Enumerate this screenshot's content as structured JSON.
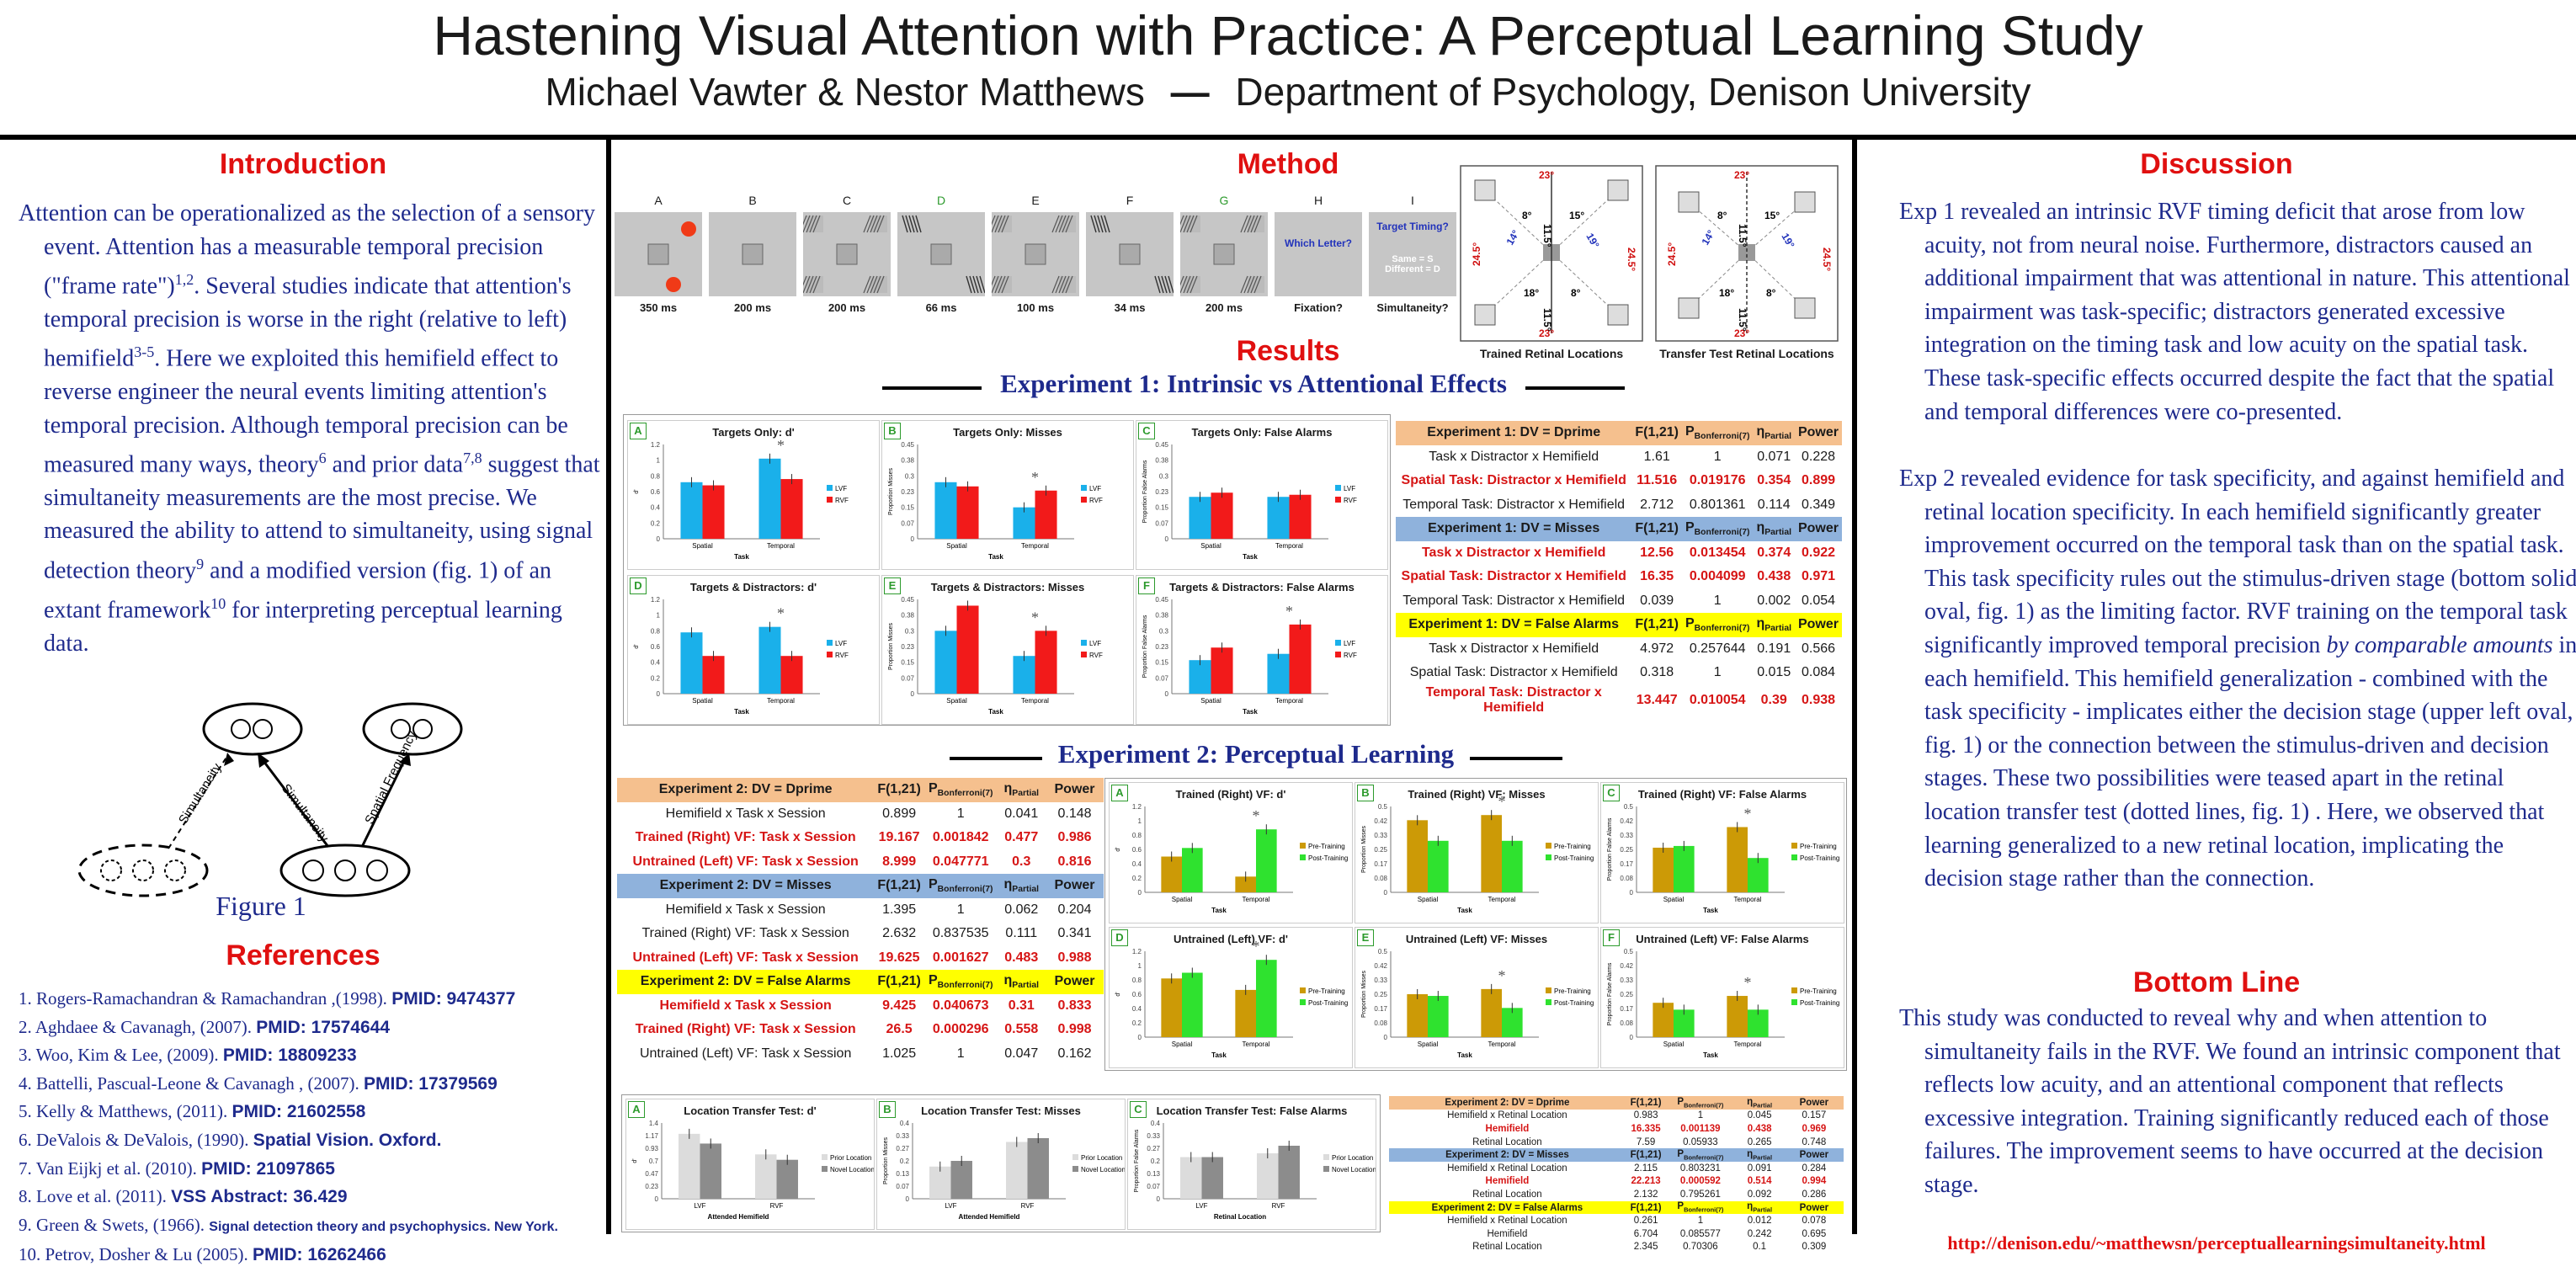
{
  "header": {
    "title": "Hastening Visual Attention with Practice: A Perceptual Learning Study",
    "authors": "Michael Vawter & Nestor Matthews",
    "dash": "—",
    "affiliation": "Department of Psychology, Denison University"
  },
  "introduction": {
    "title": "Introduction",
    "text_parts": [
      "Attention can be operationalized as the selection of a sensory event.  Attention has a measurable temporal precision (\"frame rate\")",
      "1,2",
      ". Several studies indicate that attention's temporal precision is worse in the right (relative to left) hemifield",
      "3-5",
      ".  Here we exploited this hemifield effect to reverse engineer the neural events limiting attention's temporal precision. Although temporal precision can be measured many ways, theory",
      "6",
      " and prior data",
      "7,8",
      " suggest that simultaneity measurements are the most precise. We measured the ability to attend to simultaneity, using signal detection theory",
      "9",
      " and a modified version (fig. 1) of  an extant framework",
      "10",
      " for interpreting perceptual learning data."
    ],
    "figure": {
      "caption": "Figure 1",
      "label_left": "Simultaneity",
      "label_mid": "Simultaneity",
      "label_right": "Spatial Frequency"
    }
  },
  "references": {
    "title": "References",
    "items": [
      {
        "text": "1. Rogers-Ramachandran & Ramachandran ,(1998). ",
        "bold": "PMID: 9474377"
      },
      {
        "text": "2. Aghdaee & Cavanagh, (2007). ",
        "bold": "PMID: 17574644"
      },
      {
        "text": "3. Woo, Kim & Lee, (2009). ",
        "bold": "PMID: 18809233"
      },
      {
        "text": "4. Battelli, Pascual-Leone & Cavanagh , (2007). ",
        "bold": "PMID: 17379569"
      },
      {
        "text": "5. Kelly & Matthews, (2011). ",
        "bold": "PMID: 21602558"
      },
      {
        "text": "6. DeValois & DeValois, (1990).  ",
        "bold": "Spatial Vision. Oxford."
      },
      {
        "text": "7. Van Eijkj et al. (2010). ",
        "bold": "PMID: 21097865"
      },
      {
        "text": "8. Love et al. (2011). ",
        "bold": "VSS Abstract: 36.429"
      },
      {
        "text": "9. Green & Swets, (1966). ",
        "bold": "Signal detection theory and psychophysics. New York."
      },
      {
        "text": "10. Petrov, Dosher & Lu (2005). ",
        "bold": "PMID: 16262466"
      }
    ]
  },
  "method": {
    "title": "Method",
    "frames": [
      {
        "label": "A",
        "time": "350 ms"
      },
      {
        "label": "B",
        "time": "200 ms"
      },
      {
        "label": "C",
        "time": "200 ms"
      },
      {
        "label": "D",
        "time": "66 ms"
      },
      {
        "label": "E",
        "time": "100 ms"
      },
      {
        "label": "F",
        "time": "34 ms"
      },
      {
        "label": "G",
        "time": "200 ms"
      },
      {
        "label": "H",
        "time": "Fixation?",
        "prompt": "Which Letter?"
      },
      {
        "label": "I",
        "time": "Simultaneity?",
        "prompt": "Target Timing?",
        "prompt2": "Same = S\nDifferent = D"
      }
    ],
    "diagrams": [
      {
        "caption": "Trained Retinal Locations"
      },
      {
        "caption": "Transfer Test Retinal Locations"
      }
    ],
    "angles": [
      "23°",
      "8°",
      "15°",
      "24.5°",
      "14°",
      "19°",
      "11.5°",
      "18°"
    ]
  },
  "results": {
    "title": "Results",
    "exp1_title": "Experiment 1: Intrinsic vs Attentional Effects",
    "exp2_title": "Experiment 2: Perceptual Learning",
    "legend": {
      "lvf": "LVF",
      "rvf": "RVF",
      "pre": "Pre-Training",
      "post": "Post-Training",
      "prior": "Prior Location",
      "novel": "Novel Location"
    },
    "axis": {
      "task": "Task",
      "spatial": "Spatial",
      "temporal": "Temporal",
      "lvf": "LVF",
      "rvf": "RVF",
      "attended": "Attended Hemifield",
      "retinal": "Retinal Location"
    }
  },
  "exp1_charts": [
    {
      "id": "A",
      "title": "Targets Only: d'",
      "ylabel": "d'",
      "ymax": 1.2,
      "star_at": 1,
      "lvf": [
        0.72,
        1.02
      ],
      "rvf": [
        0.68,
        0.76
      ]
    },
    {
      "id": "B",
      "title": "Targets Only: Misses",
      "ylabel": "Proportion Misses",
      "ymax": 0.45,
      "star_at": 1,
      "lvf": [
        0.27,
        0.15
      ],
      "rvf": [
        0.25,
        0.23
      ]
    },
    {
      "id": "C",
      "title": "Targets Only: False Alarms",
      "ylabel": "Proportion False Alarms",
      "ymax": 0.45,
      "star_at": null,
      "lvf": [
        0.2,
        0.2
      ],
      "rvf": [
        0.22,
        0.21
      ]
    },
    {
      "id": "D",
      "title": "Targets & Distractors: d'",
      "ylabel": "d'",
      "ymax": 1.2,
      "star_at": 1,
      "lvf": [
        0.78,
        0.85
      ],
      "rvf": [
        0.48,
        0.48
      ]
    },
    {
      "id": "E",
      "title": "Targets & Distractors: Misses",
      "ylabel": "Proportion Misses",
      "ymax": 0.45,
      "star_at": 1,
      "lvf": [
        0.3,
        0.18
      ],
      "rvf": [
        0.42,
        0.3
      ]
    },
    {
      "id": "F",
      "title": "Targets & Distractors: False Alarms",
      "ylabel": "Proportion False Alarms",
      "ymax": 0.45,
      "star_at": 1,
      "lvf": [
        0.16,
        0.19
      ],
      "rvf": [
        0.22,
        0.33
      ]
    }
  ],
  "exp2_charts": [
    {
      "id": "A",
      "title": "Trained (Right) VF: d'",
      "ylabel": "d'",
      "ymax": 1.2,
      "star_at": 1,
      "pre": [
        0.5,
        0.22
      ],
      "post": [
        0.62,
        0.88
      ]
    },
    {
      "id": "B",
      "title": "Trained (Right) VF: Misses",
      "ylabel": "Proportion Misses",
      "ymax": 0.5,
      "star_at": 1,
      "pre": [
        0.42,
        0.45
      ],
      "post": [
        0.3,
        0.3
      ]
    },
    {
      "id": "C",
      "title": "Trained (Right) VF: False Alarms",
      "ylabel": "Proportion False Alarms",
      "ymax": 0.5,
      "star_at": 1,
      "pre": [
        0.26,
        0.38
      ],
      "post": [
        0.27,
        0.2
      ]
    },
    {
      "id": "D",
      "title": "Untrained (Left) VF: d'",
      "ylabel": "d'",
      "ymax": 1.2,
      "star_at": 1,
      "pre": [
        0.82,
        0.66
      ],
      "post": [
        0.9,
        1.08
      ]
    },
    {
      "id": "E",
      "title": "Untrained (Left) VF: Misses",
      "ylabel": "Proportion Misses",
      "ymax": 0.5,
      "star_at": 1,
      "pre": [
        0.25,
        0.28
      ],
      "post": [
        0.24,
        0.17
      ]
    },
    {
      "id": "F",
      "title": "Untrained (Left) VF: False Alarms",
      "ylabel": "Proportion False Alarms",
      "ymax": 0.5,
      "star_at": 1,
      "pre": [
        0.2,
        0.24
      ],
      "post": [
        0.16,
        0.16
      ]
    }
  ],
  "transfer_charts": [
    {
      "id": "A",
      "title": "Location Transfer Test: d'",
      "ylabel": "d'",
      "xlabel": "Attended Hemifield",
      "ymax": 1.4,
      "cats": [
        "LVF",
        "RVF"
      ],
      "prior": [
        1.2,
        0.82
      ],
      "novel": [
        1.02,
        0.72
      ]
    },
    {
      "id": "B",
      "title": "Location Transfer Test: Misses",
      "ylabel": "Proportion Misses",
      "xlabel": "Attended Hemifield",
      "ymax": 0.4,
      "cats": [
        "LVF",
        "RVF"
      ],
      "prior": [
        0.17,
        0.3
      ],
      "novel": [
        0.2,
        0.32
      ]
    },
    {
      "id": "C",
      "title": "Location Transfer Test: False Alarms",
      "ylabel": "Proportion False Alarms",
      "xlabel": "Retinal Location",
      "ymax": 0.4,
      "cats": [
        "LVF",
        "RVF"
      ],
      "prior": [
        0.22,
        0.24
      ],
      "novel": [
        0.22,
        0.28
      ]
    }
  ],
  "exp1_stats": [
    {
      "header": "Experiment 1: DV = Dprime",
      "color": "orange",
      "rows": [
        {
          "label": "Task x Distractor x Hemifield",
          "f": "1.61",
          "p": "1",
          "eta": "0.071",
          "power": "0.228",
          "sig": false
        },
        {
          "label": "Spatial Task: Distractor x Hemifield",
          "f": "11.516",
          "p": "0.019176",
          "eta": "0.354",
          "power": "0.899",
          "sig": true
        },
        {
          "label": "Temporal Task: Distractor x Hemifield",
          "f": "2.712",
          "p": "0.801361",
          "eta": "0.114",
          "power": "0.349",
          "sig": false
        }
      ]
    },
    {
      "header": "Experiment 1: DV = Misses",
      "color": "blue",
      "rows": [
        {
          "label": "Task x Distractor x Hemifield",
          "f": "12.56",
          "p": "0.013454",
          "eta": "0.374",
          "power": "0.922",
          "sig": true
        },
        {
          "label": "Spatial Task: Distractor x Hemifield",
          "f": "16.35",
          "p": "0.004099",
          "eta": "0.438",
          "power": "0.971",
          "sig": true
        },
        {
          "label": "Temporal Task: Distractor x Hemifield",
          "f": "0.039",
          "p": "1",
          "eta": "0.002",
          "power": "0.054",
          "sig": false
        }
      ]
    },
    {
      "header": "Experiment 1: DV = False Alarms",
      "color": "yellow",
      "rows": [
        {
          "label": "Task x Distractor x Hemifield",
          "f": "4.972",
          "p": "0.257644",
          "eta": "0.191",
          "power": "0.566",
          "sig": false
        },
        {
          "label": "Spatial Task: Distractor x Hemifield",
          "f": "0.318",
          "p": "1",
          "eta": "0.015",
          "power": "0.084",
          "sig": false
        },
        {
          "label": "Temporal Task: Distractor x Hemifield",
          "f": "13.447",
          "p": "0.010054",
          "eta": "0.39",
          "power": "0.938",
          "sig": true
        }
      ]
    }
  ],
  "exp2_stats": [
    {
      "header": "Experiment 2: DV = Dprime",
      "color": "orange",
      "rows": [
        {
          "label": "Hemifield x Task x Session",
          "f": "0.899",
          "p": "1",
          "eta": "0.041",
          "power": "0.148",
          "sig": false
        },
        {
          "label": "Trained (Right) VF: Task x Session",
          "f": "19.167",
          "p": "0.001842",
          "eta": "0.477",
          "power": "0.986",
          "sig": true
        },
        {
          "label": "Untrained (Left) VF: Task x Session",
          "f": "8.999",
          "p": "0.047771",
          "eta": "0.3",
          "power": "0.816",
          "sig": true
        }
      ]
    },
    {
      "header": "Experiment 2: DV = Misses",
      "color": "blue",
      "rows": [
        {
          "label": "Hemifield x Task x Session",
          "f": "1.395",
          "p": "1",
          "eta": "0.062",
          "power": "0.204",
          "sig": false
        },
        {
          "label": "Trained (Right) VF: Task x Session",
          "f": "2.632",
          "p": "0.837535",
          "eta": "0.111",
          "power": "0.341",
          "sig": false
        },
        {
          "label": "Untrained (Left) VF: Task x Session",
          "f": "19.625",
          "p": "0.001627",
          "eta": "0.483",
          "power": "0.988",
          "sig": true
        }
      ]
    },
    {
      "header": "Experiment 2: DV = False Alarms",
      "color": "yellow",
      "rows": [
        {
          "label": "Hemifield x Task x Session",
          "f": "9.425",
          "p": "0.040673",
          "eta": "0.31",
          "power": "0.833",
          "sig": true
        },
        {
          "label": "Trained (Right) VF: Task x Session",
          "f": "26.5",
          "p": "0.000296",
          "eta": "0.558",
          "power": "0.998",
          "sig": true
        },
        {
          "label": "Untrained (Left) VF: Task x Session",
          "f": "1.025",
          "p": "1",
          "eta": "0.047",
          "power": "0.162",
          "sig": false
        }
      ]
    }
  ],
  "transfer_stats": [
    {
      "header": "Experiment 2: DV = Dprime",
      "color": "orange",
      "rows": [
        {
          "label": "Hemifield x Retinal Location",
          "f": "0.983",
          "p": "1",
          "eta": "0.045",
          "power": "0.157",
          "sig": false
        },
        {
          "label": "Hemifield",
          "f": "16.335",
          "p": "0.001139",
          "eta": "0.438",
          "power": "0.969",
          "sig": true
        },
        {
          "label": "Retinal Location",
          "f": "7.59",
          "p": "0.05933",
          "eta": "0.265",
          "power": "0.748",
          "sig": false
        }
      ]
    },
    {
      "header": "Experiment 2: DV = Misses",
      "color": "blue",
      "rows": [
        {
          "label": "Hemifield x Retinal Location",
          "f": "2.115",
          "p": "0.803231",
          "eta": "0.091",
          "power": "0.284",
          "sig": false
        },
        {
          "label": "Hemifield",
          "f": "22.213",
          "p": "0.000592",
          "eta": "0.514",
          "power": "0.994",
          "sig": true
        },
        {
          "label": "Retinal Location",
          "f": "2.132",
          "p": "0.795261",
          "eta": "0.092",
          "power": "0.286",
          "sig": false
        }
      ]
    },
    {
      "header": "Experiment 2: DV = False Alarms",
      "color": "yellow",
      "rows": [
        {
          "label": "Hemifield x Retinal Location",
          "f": "0.261",
          "p": "1",
          "eta": "0.012",
          "power": "0.078",
          "sig": false
        },
        {
          "label": "Hemifield",
          "f": "6.704",
          "p": "0.085577",
          "eta": "0.242",
          "power": "0.695",
          "sig": false
        },
        {
          "label": "Retinal Location",
          "f": "2.345",
          "p": "0.70306",
          "eta": "0.1",
          "power": "0.309",
          "sig": false
        }
      ]
    }
  ],
  "stat_cols": {
    "f": "F(1,21)",
    "p": "P",
    "p_sub": "Bonferroni(7)",
    "eta": "η",
    "eta_sub": "Partial",
    "power": "Power"
  },
  "discussion": {
    "title": "Discussion",
    "p1": "Exp 1 revealed an intrinsic RVF timing deficit that arose from low acuity, not from neural noise.  Furthermore, distractors caused an additional impairment that was attentional in nature.  This attentional impairment was task-specific; distractors generated excessive integration on the timing task and low acuity on the spatial task.  These task-specific effects occurred despite the fact that the spatial and temporal differences were co-presented.",
    "p2a": "Exp 2 revealed evidence for task specificity, and against hemifield and retinal location specificity.  In each hemifield significantly greater improvement occurred on the temporal task than on the spatial task.  This task specificity rules out the stimulus-driven stage (bottom solid oval, fig. 1) as the limiting factor.  RVF training on the temporal task significantly improved temporal precision  ",
    "p2_italic": "by comparable amounts",
    "p2b": " in each hemifield.  This hemifield generalization - combined with the task specificity - implicates either the decision stage  (upper left oval, fig. 1) or the connection between the stimulus-driven and decision stages. These two possibilities were teased apart in the retinal location transfer test (dotted lines, fig. 1) .  Here, we observed that learning generalized to a new retinal location, implicating the decision stage rather than the connection."
  },
  "bottom_line": {
    "title": "Bottom Line",
    "text": "This study was conducted to reveal why and when attention to simultaneity fails in the RVF.  We found an intrinsic component that reflects low acuity, and an attentional component that reflects excessive integration. Training significantly reduced each of those failures.  The improvement seems to have occurred at the decision stage."
  },
  "footer": {
    "url": "http://denison.edu/~matthewsn/perceptuallearningsimultaneity.html"
  },
  "colors": {
    "lvf": "#1ab0ea",
    "rvf": "#f21a1a",
    "pre": "#cc9a06",
    "post": "#2fe22f",
    "prior": "#dcdcdc",
    "novel": "#8c8c8c",
    "title_red": "#e01010",
    "navy": "#1e2a8c"
  }
}
